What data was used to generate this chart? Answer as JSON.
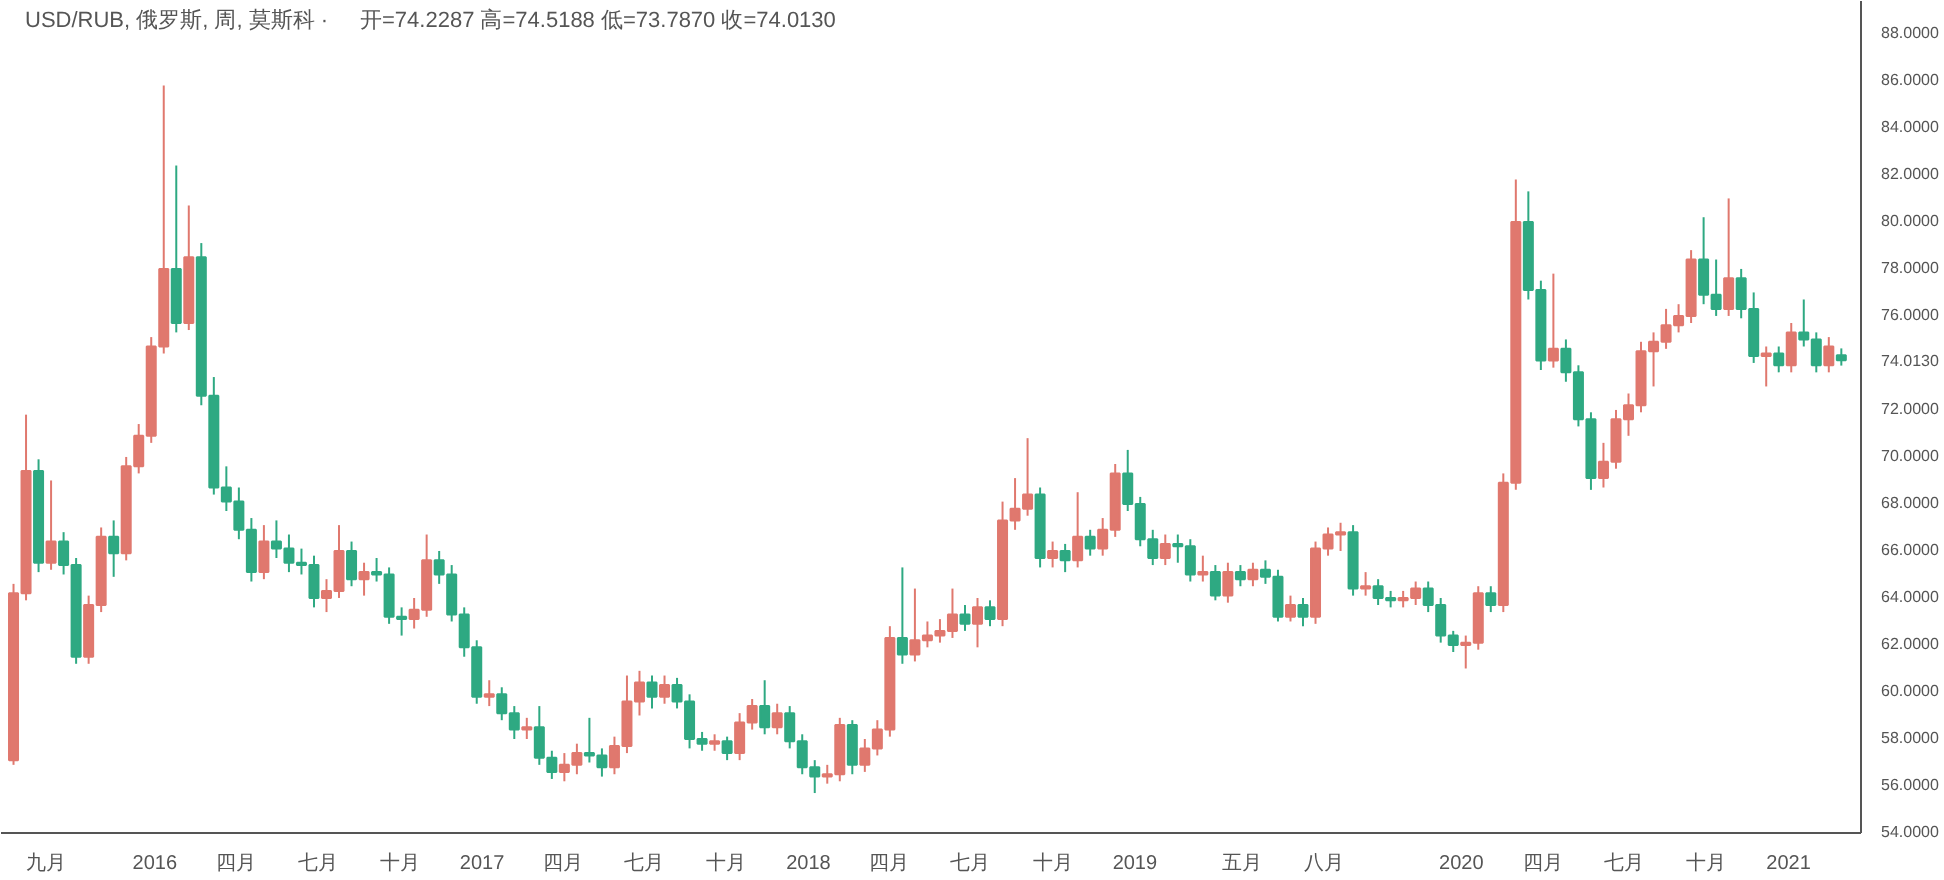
{
  "chart_data": {
    "type": "candlestick",
    "title": "USD/RUB, 俄罗斯, 周, 莫斯科 ·",
    "subtitle": "开=74.2287 高=74.5188 低=73.7870 收=74.0130",
    "x": [
      "2015-07-27",
      "2015-08-10",
      "2015-08-24",
      "2015-09-07",
      "2015-09-21",
      "2015-10-05",
      "2015-10-19",
      "2015-11-02",
      "2015-11-16",
      "2015-11-30",
      "2015-12-14",
      "2015-12-28",
      "2016-01-11",
      "2016-01-25",
      "2016-02-08",
      "2016-02-22",
      "2016-03-07",
      "2016-03-21",
      "2016-04-04",
      "2016-04-18",
      "2016-05-02",
      "2016-05-16",
      "2016-05-30",
      "2016-06-13",
      "2016-06-27",
      "2016-07-11",
      "2016-07-25",
      "2016-08-08",
      "2016-08-22",
      "2016-09-05",
      "2016-09-19",
      "2016-10-03",
      "2016-10-17",
      "2016-10-31",
      "2016-11-14",
      "2016-11-28",
      "2016-12-12",
      "2016-12-26",
      "2017-01-09",
      "2017-01-23",
      "2017-02-06",
      "2017-02-20",
      "2017-03-06",
      "2017-03-20",
      "2017-04-03",
      "2017-04-17",
      "2017-05-01",
      "2017-05-15",
      "2017-05-29",
      "2017-06-12",
      "2017-06-26",
      "2017-07-10",
      "2017-07-24",
      "2017-08-07",
      "2017-08-21",
      "2017-09-04",
      "2017-09-18",
      "2017-10-02",
      "2017-10-16",
      "2017-10-30",
      "2017-11-13",
      "2017-11-27",
      "2017-12-11",
      "2017-12-25",
      "2018-01-08",
      "2018-01-22",
      "2018-02-05",
      "2018-02-19",
      "2018-03-05",
      "2018-03-19",
      "2018-04-02",
      "2018-04-16",
      "2018-04-30",
      "2018-05-14",
      "2018-05-28",
      "2018-06-11",
      "2018-06-25",
      "2018-07-09",
      "2018-07-23",
      "2018-08-06",
      "2018-08-20",
      "2018-09-03",
      "2018-09-17",
      "2018-10-01",
      "2018-10-15",
      "2018-10-29",
      "2018-11-12",
      "2018-11-26",
      "2018-12-10",
      "2018-12-24",
      "2019-01-07",
      "2019-01-21",
      "2019-02-04",
      "2019-02-18",
      "2019-03-04",
      "2019-03-18",
      "2019-04-01",
      "2019-04-15",
      "2019-04-29",
      "2019-05-13",
      "2019-05-27",
      "2019-06-10",
      "2019-06-24",
      "2019-07-08",
      "2019-07-22",
      "2019-08-05",
      "2019-08-19",
      "2019-09-02",
      "2019-09-16",
      "2019-09-30",
      "2019-10-14",
      "2019-10-28",
      "2019-11-11",
      "2019-11-25",
      "2019-12-09",
      "2019-12-23",
      "2020-01-06",
      "2020-01-20",
      "2020-02-03",
      "2020-02-17",
      "2020-03-02",
      "2020-03-16",
      "2020-03-30",
      "2020-04-13",
      "2020-04-27",
      "2020-05-11",
      "2020-05-25",
      "2020-06-08",
      "2020-06-22",
      "2020-07-06",
      "2020-07-20",
      "2020-08-03",
      "2020-08-17",
      "2020-08-31",
      "2020-09-14",
      "2020-09-28",
      "2020-10-12",
      "2020-10-26",
      "2020-11-09",
      "2020-11-23",
      "2020-12-07",
      "2020-12-21",
      "2021-01-04",
      "2021-01-18",
      "2021-02-01",
      "2021-02-15",
      "2021-03-01"
    ],
    "ohlc": [
      [
        57.0,
        64.5,
        56.8,
        64.1
      ],
      [
        64.1,
        71.7,
        63.8,
        69.3
      ],
      [
        69.3,
        69.8,
        65.0,
        65.4
      ],
      [
        65.4,
        68.9,
        65.1,
        66.3
      ],
      [
        66.3,
        66.7,
        64.9,
        65.3
      ],
      [
        65.3,
        65.6,
        61.1,
        61.4
      ],
      [
        61.4,
        64.0,
        61.1,
        63.6
      ],
      [
        63.6,
        66.9,
        63.3,
        66.5
      ],
      [
        66.5,
        67.2,
        64.8,
        65.8
      ],
      [
        65.8,
        69.9,
        65.5,
        69.5
      ],
      [
        69.5,
        71.3,
        69.2,
        70.8
      ],
      [
        70.8,
        75.0,
        70.5,
        74.6
      ],
      [
        74.6,
        85.7,
        74.3,
        77.9
      ],
      [
        77.9,
        82.3,
        75.2,
        75.6
      ],
      [
        75.6,
        80.6,
        75.3,
        78.4
      ],
      [
        78.4,
        79.0,
        72.1,
        72.5
      ],
      [
        72.5,
        73.3,
        68.3,
        68.6
      ],
      [
        68.6,
        69.5,
        67.6,
        68.0
      ],
      [
        68.0,
        68.6,
        66.4,
        66.8
      ],
      [
        66.8,
        67.3,
        64.6,
        65.0
      ],
      [
        65.0,
        67.0,
        64.7,
        66.3
      ],
      [
        66.3,
        67.2,
        65.6,
        66.0
      ],
      [
        66.0,
        66.6,
        65.0,
        65.4
      ],
      [
        65.4,
        66.0,
        64.9,
        65.3
      ],
      [
        65.3,
        65.7,
        63.5,
        63.9
      ],
      [
        63.9,
        64.7,
        63.3,
        64.2
      ],
      [
        64.2,
        67.0,
        63.9,
        65.9
      ],
      [
        65.9,
        66.3,
        64.4,
        64.7
      ],
      [
        64.7,
        65.4,
        64.0,
        65.0
      ],
      [
        65.0,
        65.6,
        64.6,
        64.9
      ],
      [
        64.9,
        65.2,
        62.8,
        63.1
      ],
      [
        63.1,
        63.5,
        62.3,
        63.0
      ],
      [
        63.0,
        63.9,
        62.6,
        63.4
      ],
      [
        63.4,
        66.6,
        63.1,
        65.5
      ],
      [
        65.5,
        65.9,
        64.5,
        64.9
      ],
      [
        64.9,
        65.3,
        62.9,
        63.2
      ],
      [
        63.2,
        63.5,
        61.4,
        61.8
      ],
      [
        61.8,
        62.1,
        59.4,
        59.7
      ],
      [
        59.7,
        60.4,
        59.3,
        59.8
      ],
      [
        59.8,
        60.1,
        58.7,
        59.0
      ],
      [
        59.0,
        59.3,
        57.9,
        58.3
      ],
      [
        58.3,
        58.8,
        57.9,
        58.4
      ],
      [
        58.4,
        59.3,
        56.8,
        57.1
      ],
      [
        57.1,
        57.4,
        56.2,
        56.5
      ],
      [
        56.5,
        57.3,
        56.1,
        56.8
      ],
      [
        56.8,
        57.7,
        56.4,
        57.3
      ],
      [
        57.3,
        58.8,
        56.9,
        57.2
      ],
      [
        57.2,
        57.5,
        56.3,
        56.7
      ],
      [
        56.7,
        58.0,
        56.4,
        57.6
      ],
      [
        57.6,
        60.6,
        57.3,
        59.5
      ],
      [
        59.5,
        60.8,
        58.9,
        60.3
      ],
      [
        60.3,
        60.6,
        59.2,
        59.7
      ],
      [
        59.7,
        60.6,
        59.4,
        60.2
      ],
      [
        60.2,
        60.5,
        59.2,
        59.5
      ],
      [
        59.5,
        59.8,
        57.5,
        57.9
      ],
      [
        57.9,
        58.2,
        57.4,
        57.7
      ],
      [
        57.7,
        58.1,
        57.4,
        57.8
      ],
      [
        57.8,
        58.0,
        57.0,
        57.3
      ],
      [
        57.3,
        59.0,
        57.0,
        58.6
      ],
      [
        58.6,
        59.6,
        58.3,
        59.3
      ],
      [
        59.3,
        60.4,
        58.1,
        58.4
      ],
      [
        58.4,
        59.4,
        58.1,
        59.0
      ],
      [
        59.0,
        59.3,
        57.5,
        57.8
      ],
      [
        57.8,
        58.1,
        56.4,
        56.7
      ],
      [
        56.7,
        57.0,
        55.6,
        56.3
      ],
      [
        56.3,
        56.8,
        56.0,
        56.4
      ],
      [
        56.4,
        58.8,
        56.1,
        58.5
      ],
      [
        58.5,
        58.7,
        56.4,
        56.8
      ],
      [
        56.8,
        57.9,
        56.5,
        57.5
      ],
      [
        57.5,
        58.7,
        57.2,
        58.3
      ],
      [
        58.3,
        62.7,
        58.0,
        62.2
      ],
      [
        62.2,
        65.2,
        61.1,
        61.5
      ],
      [
        61.5,
        64.3,
        61.2,
        62.1
      ],
      [
        62.1,
        62.9,
        61.8,
        62.3
      ],
      [
        62.3,
        63.0,
        62.0,
        62.5
      ],
      [
        62.5,
        64.3,
        62.2,
        63.2
      ],
      [
        63.2,
        63.6,
        62.5,
        62.8
      ],
      [
        62.8,
        63.9,
        61.8,
        63.5
      ],
      [
        63.5,
        63.8,
        62.7,
        63.0
      ],
      [
        63.0,
        68.0,
        62.7,
        67.2
      ],
      [
        67.2,
        69.0,
        66.8,
        67.7
      ],
      [
        67.7,
        70.7,
        67.4,
        68.3
      ],
      [
        68.3,
        68.6,
        65.2,
        65.6
      ],
      [
        65.6,
        66.3,
        65.2,
        65.9
      ],
      [
        65.9,
        66.2,
        65.0,
        65.5
      ],
      [
        65.5,
        68.4,
        65.2,
        66.5
      ],
      [
        66.5,
        66.8,
        65.7,
        66.0
      ],
      [
        66.0,
        67.3,
        65.7,
        66.8
      ],
      [
        66.8,
        69.6,
        66.5,
        69.2
      ],
      [
        69.2,
        70.2,
        67.6,
        67.9
      ],
      [
        67.9,
        68.2,
        66.1,
        66.4
      ],
      [
        66.4,
        66.8,
        65.3,
        65.6
      ],
      [
        65.6,
        66.6,
        65.3,
        66.2
      ],
      [
        66.2,
        66.6,
        65.4,
        66.1
      ],
      [
        66.1,
        66.4,
        64.6,
        64.9
      ],
      [
        64.9,
        65.7,
        64.6,
        65.0
      ],
      [
        65.0,
        65.3,
        63.8,
        64.0
      ],
      [
        64.0,
        65.4,
        63.7,
        65.0
      ],
      [
        65.0,
        65.3,
        64.4,
        64.7
      ],
      [
        64.7,
        65.4,
        64.4,
        65.1
      ],
      [
        65.1,
        65.5,
        64.5,
        64.8
      ],
      [
        64.8,
        65.1,
        62.9,
        63.1
      ],
      [
        63.1,
        64.0,
        62.9,
        63.6
      ],
      [
        63.6,
        63.9,
        62.7,
        63.1
      ],
      [
        63.1,
        66.3,
        62.8,
        66.0
      ],
      [
        66.0,
        66.9,
        65.7,
        66.6
      ],
      [
        66.6,
        67.1,
        65.9,
        66.7
      ],
      [
        66.7,
        67.0,
        64.0,
        64.3
      ],
      [
        64.3,
        65.0,
        64.0,
        64.4
      ],
      [
        64.4,
        64.7,
        63.6,
        63.9
      ],
      [
        63.9,
        64.2,
        63.5,
        63.8
      ],
      [
        63.8,
        64.2,
        63.5,
        63.9
      ],
      [
        63.9,
        64.6,
        63.6,
        64.3
      ],
      [
        64.3,
        64.6,
        63.3,
        63.6
      ],
      [
        63.6,
        63.9,
        62.0,
        62.3
      ],
      [
        62.3,
        62.5,
        61.6,
        61.9
      ],
      [
        61.9,
        62.3,
        60.9,
        62.0
      ],
      [
        62.0,
        64.4,
        61.7,
        64.1
      ],
      [
        64.1,
        64.4,
        63.3,
        63.6
      ],
      [
        63.6,
        69.2,
        63.3,
        68.8
      ],
      [
        68.8,
        81.7,
        68.5,
        79.9
      ],
      [
        79.9,
        81.2,
        76.6,
        77.0
      ],
      [
        77.0,
        77.4,
        73.6,
        74.0
      ],
      [
        74.0,
        77.7,
        73.7,
        74.5
      ],
      [
        74.5,
        74.9,
        73.1,
        73.5
      ],
      [
        73.5,
        73.8,
        71.2,
        71.5
      ],
      [
        71.5,
        71.8,
        68.5,
        69.0
      ],
      [
        69.0,
        70.5,
        68.6,
        69.7
      ],
      [
        69.7,
        71.9,
        69.4,
        71.5
      ],
      [
        71.5,
        72.6,
        70.8,
        72.1
      ],
      [
        72.1,
        74.8,
        71.8,
        74.4
      ],
      [
        74.4,
        75.2,
        72.9,
        74.8
      ],
      [
        74.8,
        76.2,
        74.5,
        75.5
      ],
      [
        75.5,
        76.4,
        75.2,
        75.9
      ],
      [
        75.9,
        78.7,
        75.6,
        78.3
      ],
      [
        78.3,
        80.1,
        76.4,
        76.8
      ],
      [
        76.8,
        78.3,
        75.9,
        76.2
      ],
      [
        76.2,
        80.9,
        75.9,
        77.5
      ],
      [
        77.5,
        77.9,
        75.8,
        76.2
      ],
      [
        76.2,
        76.9,
        73.9,
        74.2
      ],
      [
        74.2,
        74.6,
        72.9,
        74.3
      ],
      [
        74.3,
        74.6,
        73.5,
        73.8
      ],
      [
        73.8,
        75.6,
        73.5,
        75.2
      ],
      [
        75.2,
        76.6,
        74.6,
        74.9
      ],
      [
        74.9,
        75.2,
        73.5,
        73.8
      ],
      [
        73.8,
        75.0,
        73.5,
        74.6
      ],
      [
        74.2287,
        74.5188,
        73.787,
        74.013
      ]
    ],
    "colors": [
      "#e0786e",
      "#e0786e",
      "#2ea982",
      "#e0786e",
      "#2ea982",
      "#2ea982",
      "#e0786e",
      "#e0786e",
      "#2ea982",
      "#e0786e",
      "#e0786e",
      "#e0786e",
      "#e0786e",
      "#2ea982",
      "#e0786e",
      "#2ea982",
      "#2ea982",
      "#2ea982",
      "#2ea982",
      "#2ea982",
      "#e0786e",
      "#2ea982",
      "#2ea982",
      "#2ea982",
      "#2ea982",
      "#e0786e",
      "#e0786e",
      "#2ea982",
      "#e0786e",
      "#2ea982",
      "#2ea982",
      "#2ea982",
      "#e0786e",
      "#e0786e",
      "#2ea982",
      "#2ea982",
      "#2ea982",
      "#2ea982",
      "#e0786e",
      "#2ea982",
      "#2ea982",
      "#e0786e",
      "#2ea982",
      "#2ea982",
      "#e0786e",
      "#e0786e",
      "#2ea982",
      "#2ea982",
      "#e0786e",
      "#e0786e",
      "#e0786e",
      "#2ea982",
      "#e0786e",
      "#2ea982",
      "#2ea982",
      "#2ea982",
      "#e0786e",
      "#2ea982",
      "#e0786e",
      "#e0786e",
      "#2ea982",
      "#e0786e",
      "#2ea982",
      "#2ea982",
      "#2ea982",
      "#e0786e",
      "#e0786e",
      "#2ea982",
      "#e0786e",
      "#e0786e",
      "#e0786e",
      "#2ea982",
      "#e0786e",
      "#e0786e",
      "#e0786e",
      "#e0786e",
      "#2ea982",
      "#e0786e",
      "#2ea982",
      "#e0786e",
      "#e0786e",
      "#e0786e",
      "#2ea982",
      "#e0786e",
      "#2ea982",
      "#e0786e",
      "#2ea982",
      "#e0786e",
      "#e0786e",
      "#2ea982",
      "#2ea982",
      "#2ea982",
      "#e0786e",
      "#2ea982",
      "#2ea982",
      "#e0786e",
      "#2ea982",
      "#e0786e",
      "#2ea982",
      "#e0786e",
      "#2ea982",
      "#2ea982",
      "#e0786e",
      "#2ea982",
      "#e0786e",
      "#e0786e",
      "#e0786e",
      "#2ea982",
      "#e0786e",
      "#2ea982",
      "#2ea982",
      "#e0786e",
      "#e0786e",
      "#2ea982",
      "#2ea982",
      "#2ea982",
      "#e0786e",
      "#e0786e",
      "#2ea982",
      "#e0786e",
      "#e0786e",
      "#2ea982",
      "#2ea982",
      "#e0786e",
      "#2ea982",
      "#2ea982",
      "#2ea982",
      "#e0786e",
      "#e0786e",
      "#e0786e",
      "#e0786e",
      "#e0786e",
      "#e0786e",
      "#e0786e",
      "#e0786e",
      "#2ea982",
      "#2ea982",
      "#e0786e",
      "#2ea982",
      "#2ea982",
      "#e0786e",
      "#2ea982",
      "#e0786e",
      "#2ea982",
      "#2ea982",
      "#e0786e",
      "#2ea982"
    ],
    "xlim": [
      "2015-07-13",
      "2021-03-23"
    ],
    "xticks": [
      {
        "value": "2015-09-01",
        "label": "九月"
      },
      {
        "value": "2016-01-01",
        "label": "2016"
      },
      {
        "value": "2016-04-01",
        "label": "四月"
      },
      {
        "value": "2016-07-01",
        "label": "七月"
      },
      {
        "value": "2016-10-01",
        "label": "十月"
      },
      {
        "value": "2017-01-01",
        "label": "2017"
      },
      {
        "value": "2017-04-01",
        "label": "四月"
      },
      {
        "value": "2017-07-01",
        "label": "七月"
      },
      {
        "value": "2017-10-01",
        "label": "十月"
      },
      {
        "value": "2018-01-01",
        "label": "2018"
      },
      {
        "value": "2018-04-01",
        "label": "四月"
      },
      {
        "value": "2018-07-01",
        "label": "七月"
      },
      {
        "value": "2018-10-01",
        "label": "十月"
      },
      {
        "value": "2019-01-01",
        "label": "2019"
      },
      {
        "value": "2019-05-01",
        "label": "五月"
      },
      {
        "value": "2019-08-01",
        "label": "八月"
      },
      {
        "value": "2020-01-01",
        "label": "2020"
      },
      {
        "value": "2020-04-01",
        "label": "四月"
      },
      {
        "value": "2020-07-01",
        "label": "七月"
      },
      {
        "value": "2020-10-01",
        "label": "十月"
      },
      {
        "value": "2021-01-01",
        "label": "2021"
      }
    ],
    "ylim": [
      53.9,
      89.3
    ],
    "yticks": [
      {
        "value": 54,
        "label": "54.0000"
      },
      {
        "value": 56,
        "label": "56.0000"
      },
      {
        "value": 58,
        "label": "58.0000"
      },
      {
        "value": 60,
        "label": "60.0000"
      },
      {
        "value": 62,
        "label": "62.0000"
      },
      {
        "value": 64,
        "label": "64.0000"
      },
      {
        "value": 66,
        "label": "66.0000"
      },
      {
        "value": 68,
        "label": "68.0000"
      },
      {
        "value": 70,
        "label": "70.0000"
      },
      {
        "value": 72,
        "label": "72.0000"
      },
      {
        "value": 74.013,
        "label": "74.0130"
      },
      {
        "value": 76,
        "label": "76.0000"
      },
      {
        "value": 78,
        "label": "78.0000"
      },
      {
        "value": 80,
        "label": "80.0000"
      },
      {
        "value": 82,
        "label": "82.0000"
      },
      {
        "value": 84,
        "label": "84.0000"
      },
      {
        "value": 86,
        "label": "86.0000"
      },
      {
        "value": 88,
        "label": "88.0000"
      }
    ]
  }
}
